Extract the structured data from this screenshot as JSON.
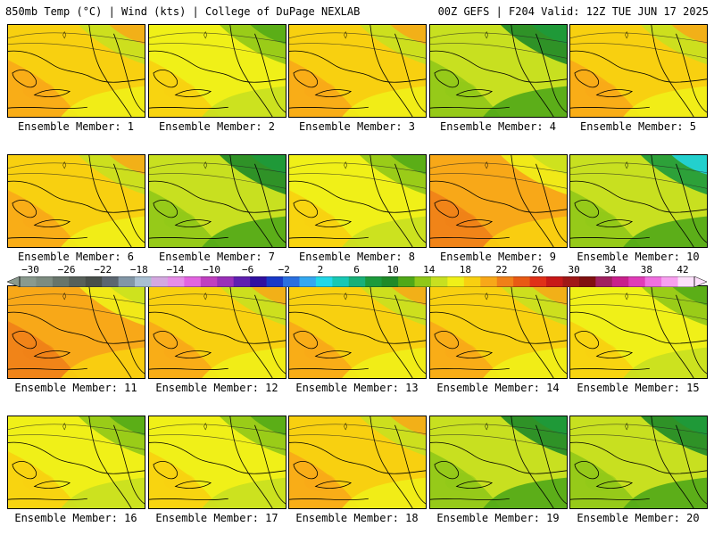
{
  "header": {
    "left": "850mb Temp (°C) | Wind (kts) | College of DuPage NEXLAB",
    "right": "00Z GEFS | F204 Valid: 12Z TUE JUN 17 2025"
  },
  "panels": [
    {
      "label": "Ensemble Member: 1",
      "scheme": "warm"
    },
    {
      "label": "Ensemble Member: 2",
      "scheme": "warm-green-ne"
    },
    {
      "label": "Ensemble Member: 3",
      "scheme": "warm"
    },
    {
      "label": "Ensemble Member: 4",
      "scheme": "green"
    },
    {
      "label": "Ensemble Member: 5",
      "scheme": "warm"
    },
    {
      "label": "Ensemble Member: 6",
      "scheme": "warm"
    },
    {
      "label": "Ensemble Member: 7",
      "scheme": "green"
    },
    {
      "label": "Ensemble Member: 8",
      "scheme": "warm-green-ne"
    },
    {
      "label": "Ensemble Member: 9",
      "scheme": "hot"
    },
    {
      "label": "Ensemble Member: 10",
      "scheme": "cool"
    },
    {
      "label": "Ensemble Member: 11",
      "scheme": "hot"
    },
    {
      "label": "Ensemble Member: 12",
      "scheme": "warm"
    },
    {
      "label": "Ensemble Member: 13",
      "scheme": "warm"
    },
    {
      "label": "Ensemble Member: 14",
      "scheme": "warm"
    },
    {
      "label": "Ensemble Member: 15",
      "scheme": "warm-green-ne"
    },
    {
      "label": "Ensemble Member: 16",
      "scheme": "warm-green-ne"
    },
    {
      "label": "Ensemble Member: 17",
      "scheme": "warm-green-ne"
    },
    {
      "label": "Ensemble Member: 18",
      "scheme": "warm"
    },
    {
      "label": "Ensemble Member: 19",
      "scheme": "green"
    },
    {
      "label": "Ensemble Member: 20",
      "scheme": "green"
    }
  ],
  "colorbar": {
    "ticks": [
      "−30",
      "−26",
      "−22",
      "−18",
      "−14",
      "−10",
      "−6",
      "−2",
      "2",
      "6",
      "10",
      "14",
      "18",
      "22",
      "26",
      "30",
      "34",
      "38",
      "42"
    ],
    "colors": [
      "#8a9a8e",
      "#7d8c80",
      "#68756b",
      "#57605a",
      "#484f4a",
      "#5c6670",
      "#8296a6",
      "#a9bfd2",
      "#d4a8e0",
      "#e68ee8",
      "#e264e0",
      "#c040c0",
      "#9a30b8",
      "#6020b0",
      "#3010a0",
      "#1838c8",
      "#2a70e0",
      "#34a8f0",
      "#22d8e8",
      "#18c8b4",
      "#18b078",
      "#1c9a3c",
      "#1e8a28",
      "#50a818",
      "#90c818",
      "#c8e020",
      "#f0f018",
      "#f8d010",
      "#f8a818",
      "#f08018",
      "#e85a14",
      "#e03018",
      "#c81818",
      "#a01818",
      "#801010",
      "#a02060",
      "#c8208c",
      "#e03cb8",
      "#f070e0",
      "#f8a0f0",
      "#fce0fa"
    ]
  }
}
